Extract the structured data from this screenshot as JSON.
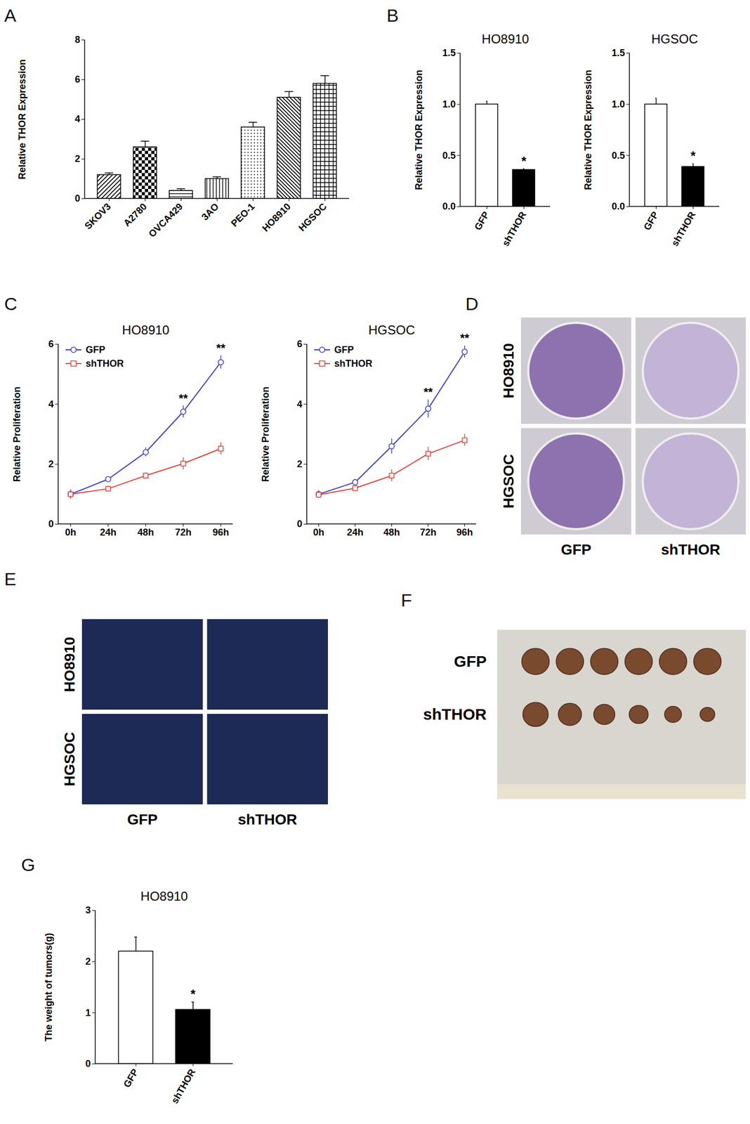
{
  "chart_data": [
    {
      "panel_label": "A",
      "type": "bar",
      "y_label": "Relative THOR Expression",
      "categories": [
        "SKOV3",
        "A2780",
        "OVCA429",
        "3AO",
        "PEO-1",
        "HO8910",
        "HGSOC"
      ],
      "values": [
        1.2,
        2.6,
        0.4,
        1.0,
        3.6,
        5.1,
        5.8
      ],
      "errors": [
        0.1,
        0.3,
        0.1,
        0.1,
        0.25,
        0.3,
        0.4
      ],
      "ylim": [
        0,
        8
      ],
      "yticks": [
        0,
        2,
        4,
        6,
        8
      ]
    },
    {
      "panel_label": "B",
      "type": "bar",
      "title": "HO8910",
      "y_label": "Relative THOR Expression",
      "categories": [
        "GFP",
        "shTHOR"
      ],
      "values": [
        1.0,
        0.36
      ],
      "errors": [
        0.03,
        0.01
      ],
      "colors": [
        "#ffffff",
        "#000000"
      ],
      "ylim": [
        0,
        1.5
      ],
      "yticks": [
        {
          "value": 0,
          "label": "0.0"
        },
        {
          "value": 0.5,
          "label": "0.5"
        },
        {
          "value": 1,
          "label": "1.0"
        },
        {
          "value": 1.5,
          "label": "1.5"
        }
      ],
      "annotations": [
        {
          "category": "shTHOR",
          "text": "*"
        }
      ]
    },
    {
      "type": "bar",
      "title": "HGSOC",
      "y_label": "Relative THOR Expression",
      "categories": [
        "GFP",
        "shTHOR"
      ],
      "values": [
        1.0,
        0.39
      ],
      "errors": [
        0.06,
        0.03
      ],
      "colors": [
        "#ffffff",
        "#000000"
      ],
      "ylim": [
        0,
        1.5
      ],
      "yticks": [
        {
          "value": 0,
          "label": "0.0"
        },
        {
          "value": 0.5,
          "label": "0.5"
        },
        {
          "value": 1,
          "label": "1.0"
        },
        {
          "value": 1.5,
          "label": "1.5"
        }
      ],
      "annotations": [
        {
          "category": "shTHOR",
          "text": "*"
        }
      ]
    },
    {
      "panel_label": "C",
      "type": "line",
      "title": "HO8910",
      "y_label": "Relative Proliferation",
      "categories": [
        "0h",
        "24h",
        "48h",
        "72h",
        "96h"
      ],
      "series": [
        {
          "name": "GFP",
          "color": "#3a3ad6",
          "marker": "circle",
          "values": [
            1.0,
            1.5,
            2.4,
            3.75,
            5.4
          ],
          "errors": [
            0.15,
            0.08,
            0.15,
            0.2,
            0.22
          ]
        },
        {
          "name": "shTHOR",
          "color": "#e8413c",
          "marker": "square",
          "values": [
            1.0,
            1.18,
            1.62,
            2.02,
            2.52
          ],
          "errors": [
            0.15,
            0.1,
            0.1,
            0.2,
            0.2
          ]
        }
      ],
      "ylim": [
        0,
        6
      ],
      "yticks": [
        0,
        2,
        4,
        6
      ],
      "legend": "top-left",
      "annotations": [
        {
          "category": "72h",
          "text": "**"
        },
        {
          "category": "96h",
          "text": "**"
        }
      ]
    },
    {
      "type": "line",
      "title": "HGSOC",
      "y_label": "Relative Proliferation",
      "categories": [
        "0h",
        "24h",
        "48h",
        "72h",
        "96h"
      ],
      "series": [
        {
          "name": "GFP",
          "color": "#3a3ad6",
          "marker": "circle",
          "values": [
            1.0,
            1.4,
            2.6,
            3.85,
            5.75
          ],
          "errors": [
            0.12,
            0.1,
            0.25,
            0.3,
            0.2
          ]
        },
        {
          "name": "shTHOR",
          "color": "#e8413c",
          "marker": "square",
          "values": [
            0.98,
            1.2,
            1.62,
            2.35,
            2.8
          ],
          "errors": [
            0.12,
            0.1,
            0.2,
            0.22,
            0.2
          ]
        }
      ],
      "ylim": [
        0,
        6
      ],
      "yticks": [
        0,
        2,
        4,
        6
      ],
      "legend": "top-left",
      "annotations": [
        {
          "category": "72h",
          "text": "**"
        },
        {
          "category": "96h",
          "text": "**"
        }
      ]
    },
    {
      "panel_label": "G",
      "type": "bar",
      "title": "HO8910",
      "y_label": "The weight of tumors(g)",
      "categories": [
        "GFP",
        "shTHOR"
      ],
      "values": [
        2.2,
        1.06
      ],
      "errors": [
        0.28,
        0.15
      ],
      "colors": [
        "#ffffff",
        "#000000"
      ],
      "ylim": [
        0,
        3
      ],
      "yticks": [
        0,
        1,
        2,
        3
      ],
      "annotations": [
        {
          "category": "shTHOR",
          "text": "*"
        }
      ]
    }
  ],
  "images": [
    {
      "panel_label": "D",
      "type": "dishes",
      "row_labels": [
        "HO8910",
        "HGSOC"
      ],
      "column_labels": [
        "GFP",
        "shTHOR"
      ]
    },
    {
      "panel_label": "E",
      "type": "fluorescence",
      "row_labels": [
        "HO8910",
        "HGSOC"
      ],
      "column_labels": [
        "GFP",
        "shTHOR"
      ]
    },
    {
      "panel_label": "F",
      "type": "tumors",
      "row_labels": [
        "GFP",
        "shTHOR"
      ],
      "counts": [
        6,
        6
      ]
    }
  ]
}
